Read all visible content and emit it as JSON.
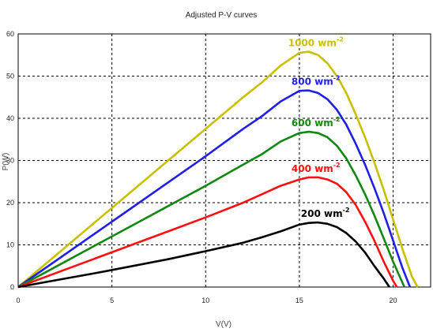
{
  "chart_data": {
    "type": "line",
    "title": "Adjusted P-V curves",
    "xlabel": "V(V)",
    "ylabel": "P(W)",
    "xlim": [
      0,
      22
    ],
    "ylim": [
      0,
      60
    ],
    "xticks": [
      0,
      5,
      10,
      15,
      20
    ],
    "yticks": [
      0,
      10,
      20,
      30,
      40,
      50,
      60
    ],
    "grid": true,
    "series": [
      {
        "name": "1000 wm",
        "sup": "-2",
        "color": "#c8c000",
        "x": [
          0,
          2,
          4,
          6,
          8,
          10,
          12,
          13,
          14,
          15,
          15.5,
          16,
          16.5,
          17,
          17.5,
          18,
          18.5,
          19,
          19.5,
          20,
          20.5,
          21,
          21.3
        ],
        "y": [
          0,
          7.5,
          15,
          22.5,
          30,
          37.5,
          45,
          48.5,
          52.5,
          55.5,
          55.8,
          55,
          53,
          50,
          46,
          41,
          35.5,
          29.5,
          23,
          16,
          9,
          2.5,
          0
        ]
      },
      {
        "name": "800 wm",
        "sup": "-2",
        "color": "#1f1fe6",
        "x": [
          0,
          2,
          4,
          6,
          8,
          10,
          12,
          13,
          14,
          15,
          15.5,
          16,
          16.5,
          17,
          17.5,
          18,
          18.5,
          19,
          19.5,
          20,
          20.5,
          20.9
        ],
        "y": [
          0,
          6.2,
          12.4,
          18.6,
          24.8,
          31,
          37.5,
          40.5,
          44,
          46.5,
          46.6,
          46,
          44.5,
          42,
          38.5,
          34,
          29,
          23.5,
          17.5,
          11,
          4.5,
          0
        ]
      },
      {
        "name": "600 wm",
        "sup": "-2",
        "color": "#118811",
        "x": [
          0,
          2,
          4,
          6,
          8,
          10,
          12,
          13,
          14,
          15,
          15.5,
          16,
          16.5,
          17,
          17.5,
          18,
          18.5,
          19,
          19.5,
          20,
          20.6
        ],
        "y": [
          0,
          4.8,
          9.6,
          14.4,
          19.2,
          24,
          29,
          31.5,
          34.5,
          36.5,
          36.8,
          36.5,
          35.5,
          33.5,
          30.5,
          26.5,
          22,
          17,
          11.5,
          6,
          0
        ]
      },
      {
        "name": "400 wm",
        "sup": "-2",
        "color": "#ff1010",
        "x": [
          0,
          2,
          4,
          6,
          8,
          10,
          12,
          13,
          14,
          15,
          15.5,
          16,
          16.5,
          17,
          17.5,
          18,
          18.5,
          19,
          19.5,
          20,
          20.2
        ],
        "y": [
          0,
          3.3,
          6.6,
          9.9,
          13.2,
          16.5,
          20,
          22,
          24,
          25.5,
          26,
          26,
          25.5,
          24.5,
          22.5,
          19.5,
          15.5,
          11,
          6,
          1.5,
          0
        ]
      },
      {
        "name": "200 wm",
        "sup": "-2",
        "color": "#000000",
        "x": [
          0,
          2,
          4,
          6,
          8,
          10,
          12,
          13,
          14,
          15,
          15.5,
          16,
          16.5,
          17,
          17.5,
          18,
          18.5,
          19,
          19.5,
          19.8
        ],
        "y": [
          0,
          1.6,
          3.2,
          4.9,
          6.6,
          8.5,
          10.5,
          11.8,
          13.2,
          14.8,
          15.2,
          15.3,
          15,
          14.2,
          12.8,
          10.8,
          8.2,
          5,
          2,
          0
        ]
      }
    ]
  }
}
